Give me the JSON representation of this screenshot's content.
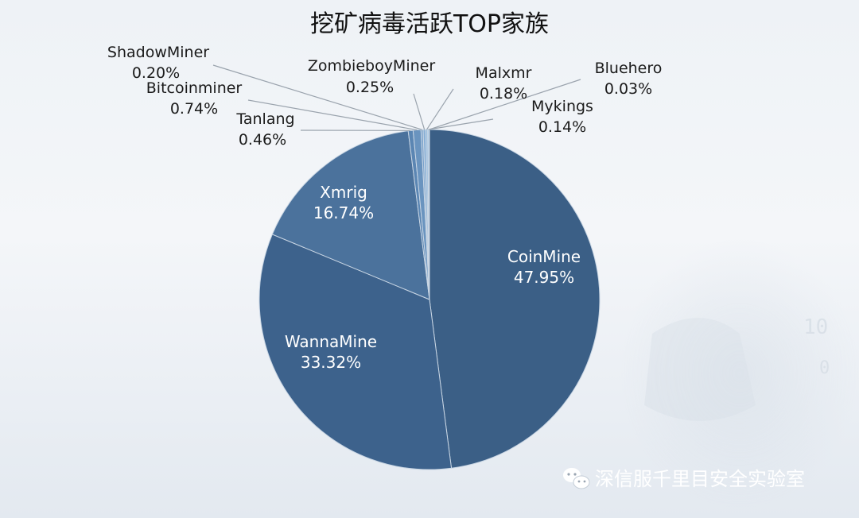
{
  "chart_data": {
    "type": "pie",
    "title": "挖矿病毒活跃TOP家族",
    "slices": [
      {
        "name": "CoinMine",
        "value": 47.95,
        "label": "47.95%",
        "color": "#3b5f86"
      },
      {
        "name": "WannaMine",
        "value": 33.32,
        "label": "33.32%",
        "color": "#3d628c"
      },
      {
        "name": "Xmrig",
        "value": 16.74,
        "label": "16.74%",
        "color": "#4b729c"
      },
      {
        "name": "Tanlang",
        "value": 0.46,
        "label": "0.46%",
        "color": "#5b86b3"
      },
      {
        "name": "Bitcoinminer",
        "value": 0.74,
        "label": "0.74%",
        "color": "#6a94bf"
      },
      {
        "name": "ShadowMiner",
        "value": 0.2,
        "label": "0.20%",
        "color": "#7aa2cb"
      },
      {
        "name": "ZombieboyMiner",
        "value": 0.25,
        "label": "0.25%",
        "color": "#89b0d6"
      },
      {
        "name": "Malxmr",
        "value": 0.18,
        "label": "0.18%",
        "color": "#98bddf"
      },
      {
        "name": "Mykings",
        "value": 0.14,
        "label": "0.14%",
        "color": "#a7c9e6"
      },
      {
        "name": "Bluehero",
        "value": 0.03,
        "label": "0.03%",
        "color": "#b6d4ec"
      }
    ]
  },
  "watermark": {
    "text": "深信服千里目安全实验室",
    "icon": "wechat-icon"
  }
}
